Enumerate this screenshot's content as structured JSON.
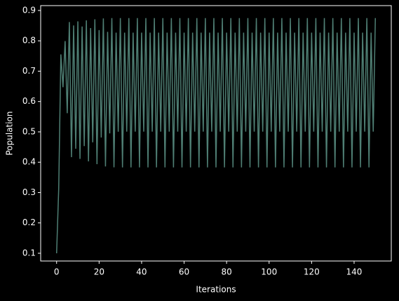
{
  "chart_data": {
    "type": "line",
    "x_label": "Iterations",
    "y_label": "Population",
    "x": [
      0,
      1,
      2,
      3,
      4,
      5,
      6,
      7,
      8,
      9,
      10,
      11,
      12,
      13,
      14,
      15,
      16,
      17,
      18,
      19,
      20,
      21,
      22,
      23,
      24,
      25,
      26,
      27,
      28,
      29,
      30,
      31,
      32,
      33,
      34,
      35,
      36,
      37,
      38,
      39,
      40,
      41,
      42,
      43,
      44,
      45,
      46,
      47,
      48,
      49,
      50,
      51,
      52,
      53,
      54,
      55,
      56,
      57,
      58,
      59,
      60,
      61,
      62,
      63,
      64,
      65,
      66,
      67,
      68,
      69,
      70,
      71,
      72,
      73,
      74,
      75,
      76,
      77,
      78,
      79,
      80,
      81,
      82,
      83,
      84,
      85,
      86,
      87,
      88,
      89,
      90,
      91,
      92,
      93,
      94,
      95,
      96,
      97,
      98,
      99,
      100,
      101,
      102,
      103,
      104,
      105,
      106,
      107,
      108,
      109,
      110,
      111,
      112,
      113,
      114,
      115,
      116,
      117,
      118,
      119,
      120,
      121,
      122,
      123,
      124,
      125,
      126,
      127,
      128,
      129,
      130,
      131,
      132,
      133,
      134,
      135,
      136,
      137,
      138,
      139,
      140,
      141,
      142,
      143,
      144,
      145,
      146,
      147,
      148,
      149,
      150
    ],
    "series": [
      {
        "name": "Population",
        "color": "#4f7f74",
        "values": [
          0.1,
          0.315,
          0.7552,
          0.6471,
          0.7993,
          0.5614,
          0.8618,
          0.4168,
          0.8508,
          0.4443,
          0.8641,
          0.4109,
          0.8472,
          0.453,
          0.8673,
          0.4029,
          0.842,
          0.4656,
          0.8709,
          0.3936,
          0.8354,
          0.4813,
          0.8738,
          0.386,
          0.8295,
          0.4949,
          0.8749,
          0.3831,
          0.8271,
          0.5005,
          0.875,
          0.3828,
          0.8269,
          0.5009,
          0.875,
          0.3828,
          0.8269,
          0.5009,
          0.875,
          0.3828,
          0.8269,
          0.5009,
          0.875,
          0.3828,
          0.8269,
          0.5009,
          0.875,
          0.3828,
          0.8269,
          0.5009,
          0.875,
          0.3828,
          0.8269,
          0.5009,
          0.875,
          0.3828,
          0.8269,
          0.5009,
          0.875,
          0.3828,
          0.8269,
          0.5009,
          0.875,
          0.3828,
          0.8269,
          0.5009,
          0.875,
          0.3828,
          0.8269,
          0.5009,
          0.875,
          0.3828,
          0.8269,
          0.5009,
          0.875,
          0.3828,
          0.8269,
          0.5009,
          0.875,
          0.3828,
          0.8269,
          0.5009,
          0.875,
          0.3828,
          0.8269,
          0.5009,
          0.875,
          0.3828,
          0.8269,
          0.5009,
          0.875,
          0.3828,
          0.8269,
          0.5009,
          0.875,
          0.3828,
          0.8269,
          0.5009,
          0.875,
          0.3828,
          0.8269,
          0.5009,
          0.875,
          0.3828,
          0.8269,
          0.5009,
          0.875,
          0.3828,
          0.8269,
          0.5009,
          0.875,
          0.3828,
          0.8269,
          0.5009,
          0.875,
          0.3828,
          0.8269,
          0.5009,
          0.875,
          0.3828,
          0.8269,
          0.5009,
          0.875,
          0.3828,
          0.8269,
          0.5009,
          0.875,
          0.3828,
          0.8269,
          0.5009,
          0.875,
          0.3828,
          0.8269,
          0.5009,
          0.875,
          0.3828,
          0.8269,
          0.5009,
          0.875,
          0.3828,
          0.8269,
          0.5009,
          0.875,
          0.3828,
          0.8269,
          0.5009,
          0.875,
          0.3828,
          0.8269,
          0.5009,
          0.875
        ]
      }
    ],
    "xlim": [
      -7.5,
      157.5
    ],
    "xticks": [
      0,
      20,
      40,
      60,
      80,
      100,
      120,
      140
    ],
    "ylim": [
      0.0745,
      0.916
    ],
    "yticks": [
      0.1,
      0.2,
      0.3,
      0.4,
      0.5,
      0.6,
      0.7,
      0.8,
      0.9
    ]
  }
}
